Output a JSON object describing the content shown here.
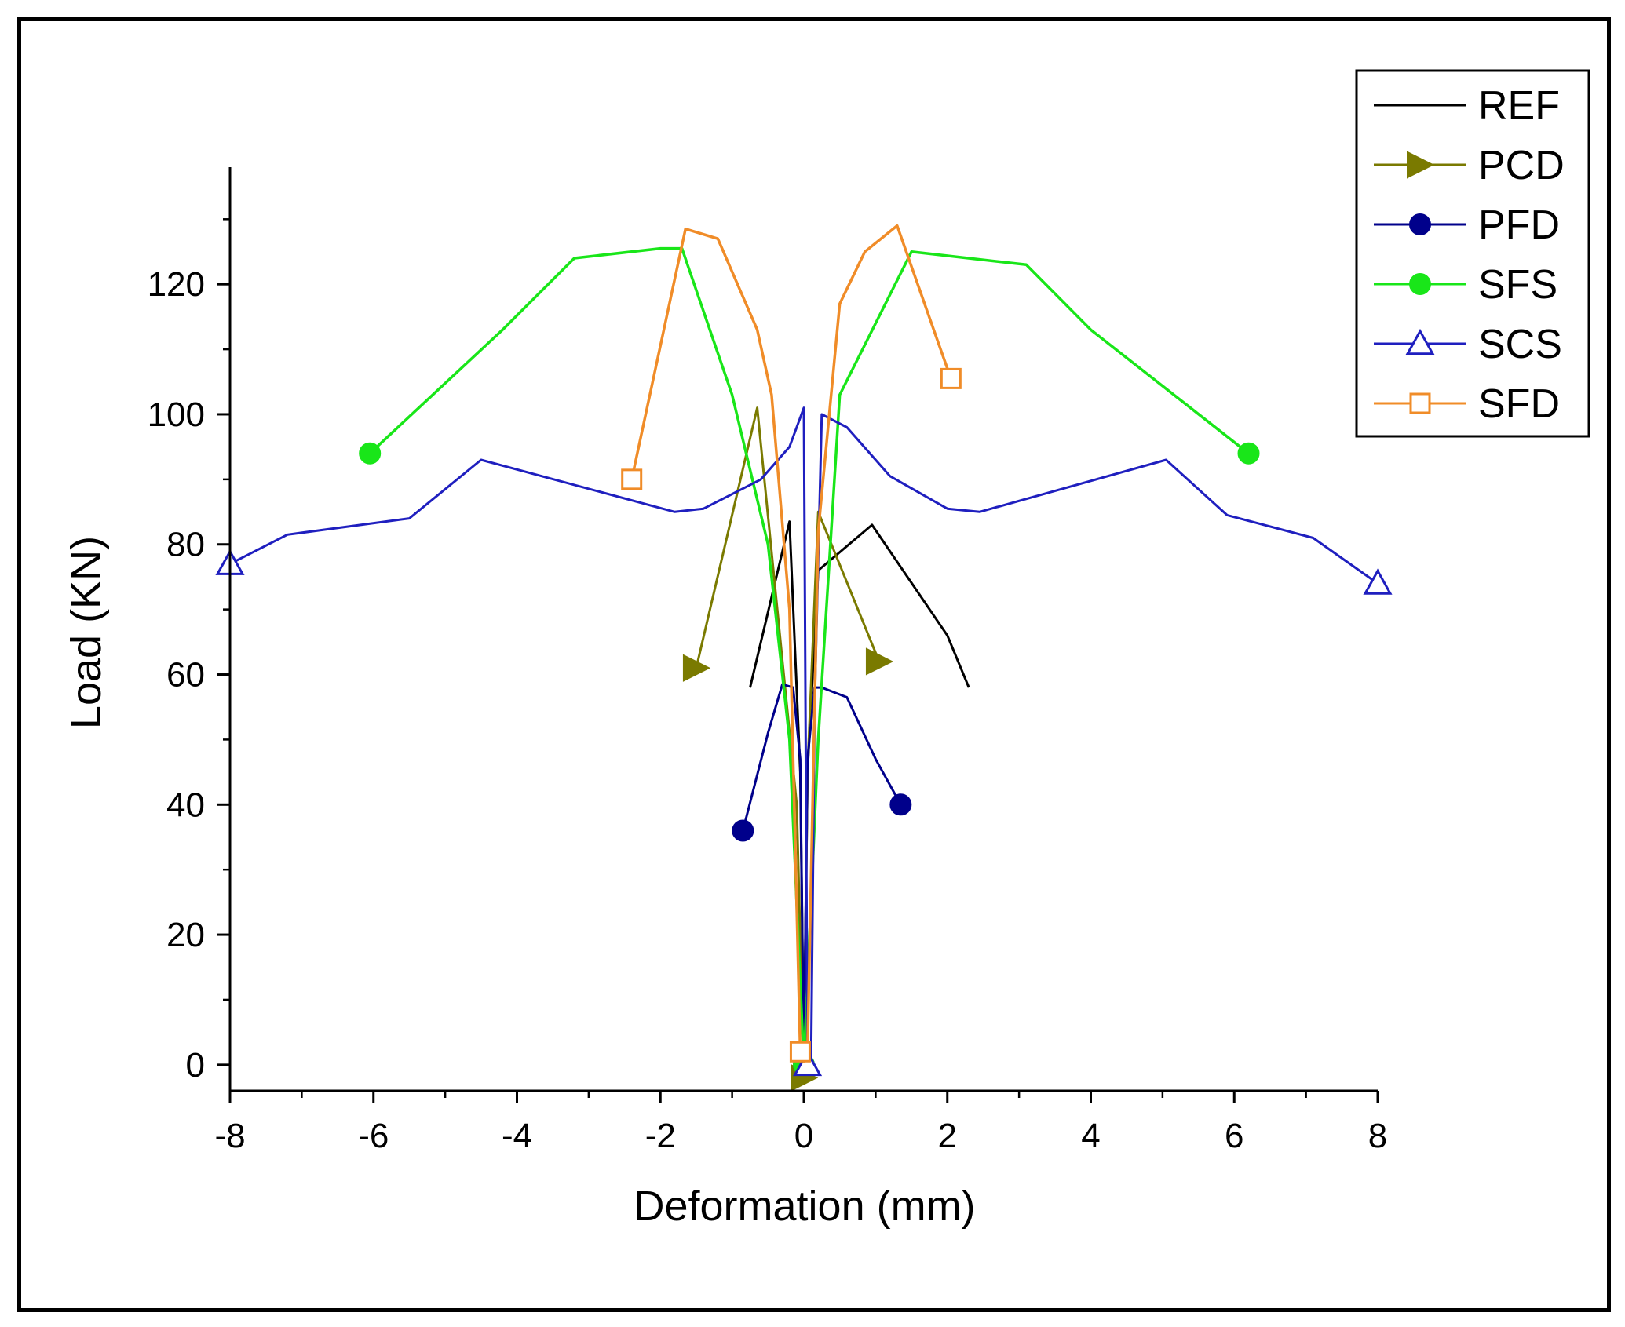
{
  "chart_data": {
    "type": "line",
    "title": "",
    "xlabel": "Deformation (mm)",
    "ylabel": "Load (KN)",
    "xlim": [
      -8,
      8
    ],
    "ylim": [
      -4,
      138
    ],
    "xticks": [
      -8,
      -6,
      -4,
      -2,
      0,
      2,
      4,
      6,
      8
    ],
    "yticks": [
      0,
      20,
      40,
      60,
      80,
      100,
      120
    ],
    "xtick_labels": [
      "-8",
      "-6",
      "-4",
      "-2",
      "0",
      "2",
      "4",
      "6",
      "8"
    ],
    "ytick_labels": [
      "0",
      "20",
      "40",
      "60",
      "80",
      "100",
      "120"
    ],
    "grid": false,
    "legend_position": "top-right",
    "series": [
      {
        "name": "REF",
        "color": "#000000",
        "marker": "none",
        "x": [
          -0.75,
          -0.2,
          -0.05,
          0.0,
          0.05,
          0.2,
          0.95,
          2.0,
          2.3
        ],
        "y": [
          58,
          83.5,
          45,
          0,
          45,
          76,
          83,
          66,
          58
        ]
      },
      {
        "name": "PCD",
        "color": "#7a7a00",
        "marker": "triangle-right",
        "x": [
          -1.5,
          -0.65,
          -0.1,
          0.0,
          0.05,
          0.2,
          1.05
        ],
        "y": [
          61,
          101,
          40,
          -2,
          45,
          85,
          62
        ]
      },
      {
        "name": "PFD",
        "color": "#00008b",
        "marker": "circle",
        "x": [
          -0.85,
          -0.5,
          -0.3,
          -0.15,
          -0.05,
          0.0,
          0.05,
          0.15,
          0.25,
          0.6,
          1.0,
          1.35
        ],
        "y": [
          36,
          51,
          58.5,
          58,
          47,
          0,
          47,
          58,
          58,
          56.5,
          47,
          40
        ]
      },
      {
        "name": "SFS",
        "color": "#19e619",
        "marker": "circle",
        "x": [
          -6.05,
          -4.2,
          -3.2,
          -2.0,
          -1.7,
          -1.0,
          -0.5,
          -0.2,
          0.0,
          0.2,
          0.5,
          1.5,
          3.1,
          4.0,
          6.2
        ],
        "y": [
          94,
          113,
          124,
          125.5,
          125.5,
          103,
          80,
          50,
          0,
          50,
          103,
          125,
          123,
          113,
          94
        ]
      },
      {
        "name": "SCS",
        "color": "#1f1fbf",
        "marker": "triangle-up",
        "x": [
          -8.0,
          -7.2,
          -5.5,
          -4.5,
          -1.8,
          -1.4,
          -0.6,
          -0.2,
          0.0,
          0.05,
          0.1,
          0.15,
          0.25,
          0.6,
          1.2,
          2.0,
          2.45,
          5.05,
          5.9,
          7.1,
          8.0
        ],
        "y": [
          77,
          81.5,
          84,
          93,
          85,
          85.5,
          90,
          95,
          101,
          0,
          -1,
          55,
          100,
          98,
          90.5,
          85.5,
          85,
          93,
          84.5,
          81,
          74
        ]
      },
      {
        "name": "SFD",
        "color": "#f08c28",
        "marker": "square",
        "x": [
          -2.4,
          -1.65,
          -1.2,
          -0.65,
          -0.45,
          -0.2,
          -0.05,
          0.0,
          0.05,
          0.2,
          0.5,
          0.85,
          1.3,
          2.05
        ],
        "y": [
          90,
          128.5,
          127,
          113,
          103,
          70,
          2,
          0.5,
          2,
          82,
          117,
          125,
          129,
          105.5
        ]
      }
    ]
  }
}
